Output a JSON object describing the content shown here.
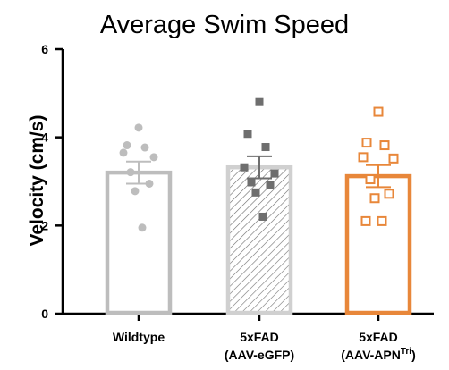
{
  "chart_data": {
    "type": "bar",
    "title": "Average Swim Speed",
    "ylabel": "Velocity (cm/s)",
    "xlabel": "",
    "ylim": [
      0,
      6
    ],
    "yticks": [
      "0",
      "2",
      "4",
      "6"
    ],
    "categories": [
      {
        "line1": "Wildtype",
        "line2": "",
        "line2_sup": "",
        "line2_end": ""
      },
      {
        "line1": "5xFAD",
        "line2": "(AAV-eGFP)",
        "line2_sup": "",
        "line2_end": ""
      },
      {
        "line1": "5xFAD",
        "line2": "(AAV-APN",
        "line2_sup": "Tri",
        "line2_end": ")"
      }
    ],
    "bars": [
      {
        "mean": 3.2,
        "sem": 0.25,
        "color": "#bdbdbd",
        "fill": "none",
        "marker": "circle",
        "points": [
          4.22,
          3.82,
          3.77,
          3.65,
          3.55,
          3.21,
          2.95,
          2.78,
          1.95
        ]
      },
      {
        "mean": 3.32,
        "sem": 0.25,
        "color": "#6e6e6e",
        "fill": "hatch",
        "marker": "square",
        "points": [
          4.8,
          4.08,
          3.78,
          3.32,
          3.18,
          2.98,
          2.92,
          2.75,
          2.2
        ]
      },
      {
        "mean": 3.12,
        "sem": 0.25,
        "color": "#e8873a",
        "fill": "none",
        "marker": "square-open",
        "points": [
          4.58,
          3.88,
          3.82,
          3.55,
          3.52,
          3.05,
          2.72,
          2.62,
          2.1,
          2.1
        ]
      }
    ]
  }
}
